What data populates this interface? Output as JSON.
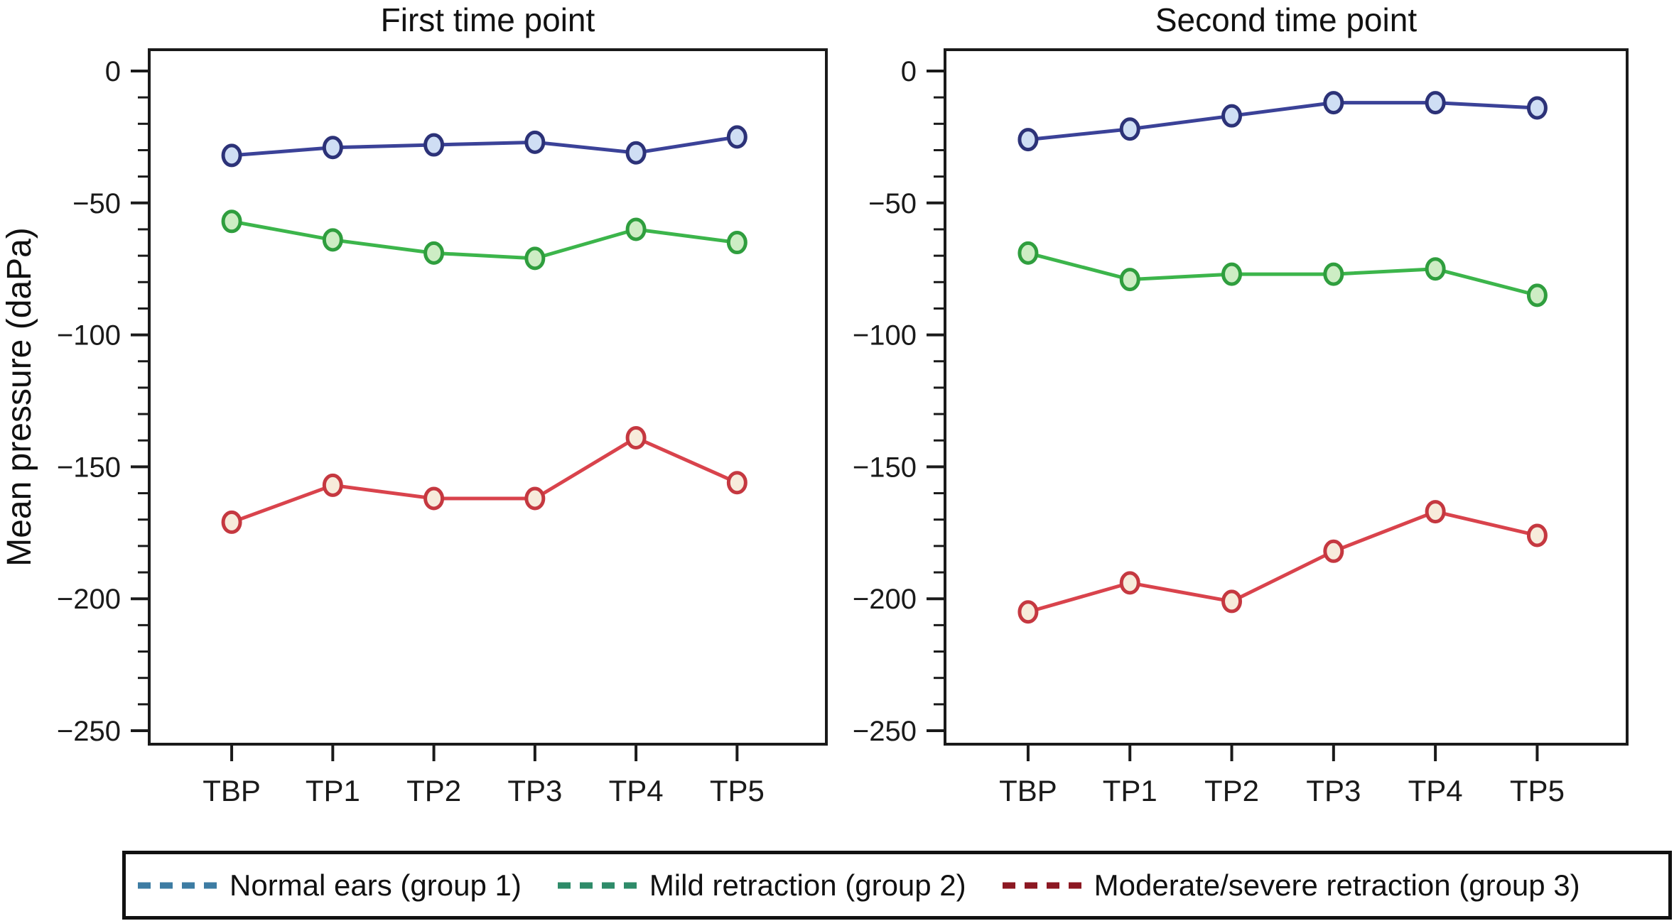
{
  "ylabel": "Mean pressure (daPa)",
  "axis": {
    "color": "#1a1a1a",
    "background": "#ffffff"
  },
  "chart_data": [
    {
      "type": "line",
      "title": "First time point",
      "categories": [
        "TBP",
        "TP1",
        "TP2",
        "TP3",
        "TP4",
        "TP5"
      ],
      "xlabel": "",
      "ylabel": "Mean pressure (daPa)",
      "ylim": [
        -255,
        8
      ],
      "yticks": [
        0,
        -50,
        -100,
        -150,
        -200,
        -250
      ],
      "minor_tick_step": 10,
      "grid": false,
      "legend_position": "bottom",
      "series": [
        {
          "name": "Normal ears (group 1)",
          "values": [
            -32,
            -29,
            -28,
            -27,
            -31,
            -25
          ],
          "line_color": "#3b4298",
          "marker_stroke": "#2c3278",
          "marker_fill": "#cfdef4"
        },
        {
          "name": "Mild retraction (group 2)",
          "values": [
            -57,
            -64,
            -69,
            -71,
            -60,
            -65
          ],
          "line_color": "#3cb54b",
          "marker_stroke": "#2f9e3e",
          "marker_fill": "#cdedc4"
        },
        {
          "name": "Moderate/severe retraction (group 3)",
          "values": [
            -171,
            -157,
            -162,
            -162,
            -139,
            -156
          ],
          "line_color": "#d9434c",
          "marker_stroke": "#c53840",
          "marker_fill": "#f7ebdb"
        }
      ]
    },
    {
      "type": "line",
      "title": "Second time point",
      "categories": [
        "TBP",
        "TP1",
        "TP2",
        "TP3",
        "TP4",
        "TP5"
      ],
      "xlabel": "",
      "ylabel": "Mean pressure (daPa)",
      "ylim": [
        -255,
        8
      ],
      "yticks": [
        0,
        -50,
        -100,
        -150,
        -200,
        -250
      ],
      "minor_tick_step": 10,
      "grid": false,
      "legend_position": "bottom",
      "series": [
        {
          "name": "Normal ears (group 1)",
          "values": [
            -26,
            -22,
            -17,
            -12,
            -12,
            -14
          ],
          "line_color": "#3b4298",
          "marker_stroke": "#2c3278",
          "marker_fill": "#cfdef4"
        },
        {
          "name": "Mild retraction (group 2)",
          "values": [
            -69,
            -79,
            -77,
            -77,
            -75,
            -85
          ],
          "line_color": "#3cb54b",
          "marker_stroke": "#2f9e3e",
          "marker_fill": "#cdedc4"
        },
        {
          "name": "Moderate/severe retraction (group 3)",
          "values": [
            -205,
            -194,
            -201,
            -182,
            -167,
            -176
          ],
          "line_color": "#d9434c",
          "marker_stroke": "#c53840",
          "marker_fill": "#f7ebdb"
        }
      ]
    }
  ],
  "legend": {
    "items": [
      {
        "label": "Normal ears (group 1)",
        "color": "#3d7ca3"
      },
      {
        "label": "Mild retraction (group 2)",
        "color": "#2e8b69"
      },
      {
        "label": "Moderate/severe retraction (group 3)",
        "color": "#8c1822"
      }
    ]
  }
}
